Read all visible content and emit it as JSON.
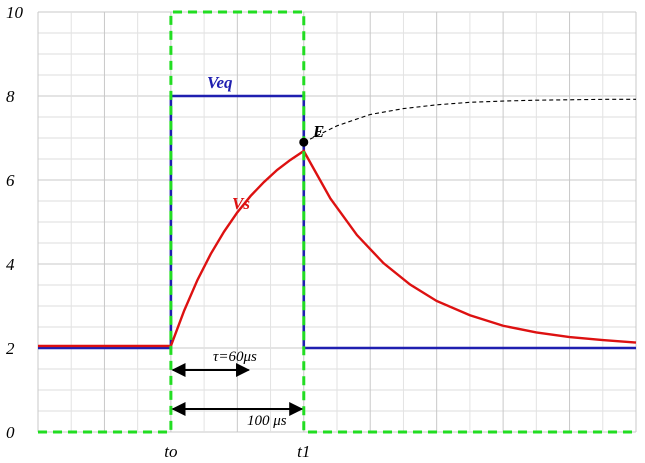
{
  "chart_data": {
    "type": "line",
    "title": "",
    "xlabel": "",
    "ylabel": "",
    "ylim": [
      0,
      10
    ],
    "xlim": [
      -100,
      350
    ],
    "grid": true,
    "y_ticks": [
      "0",
      "2",
      "4",
      "6",
      "8",
      "10"
    ],
    "x_ticks": [
      {
        "x": 0,
        "label": "to"
      },
      {
        "x": 100,
        "label": "t1"
      }
    ],
    "series": [
      {
        "name": "Veq",
        "color": "#1f1fb0",
        "style": "solid",
        "x": [
          -100,
          0,
          0,
          100,
          100,
          350
        ],
        "y": [
          2,
          2,
          8,
          8,
          2,
          2
        ]
      },
      {
        "name": "Vs",
        "color": "#dd1111",
        "style": "solid",
        "x": [
          -100,
          0,
          10,
          20,
          30,
          40,
          50,
          60,
          70,
          80,
          90,
          100,
          120,
          140,
          160,
          180,
          200,
          225,
          250,
          275,
          300,
          325,
          350
        ],
        "y": [
          2.05,
          2.05,
          2.89,
          3.62,
          4.24,
          4.77,
          5.23,
          5.62,
          5.95,
          6.24,
          6.48,
          6.69,
          5.56,
          4.69,
          4.02,
          3.51,
          3.12,
          2.78,
          2.53,
          2.37,
          2.26,
          2.19,
          2.13
        ]
      },
      {
        "name": "",
        "color": "#000000",
        "style": "dashed",
        "x": [
          100,
          125,
          150,
          175,
          200,
          225,
          250,
          275,
          300,
          325,
          350
        ],
        "y": [
          6.9,
          7.29,
          7.56,
          7.7,
          7.79,
          7.85,
          7.88,
          7.9,
          7.91,
          7.92,
          7.92
        ]
      },
      {
        "name": "",
        "color": "#22dd22",
        "style": "dashed",
        "x": [
          -100,
          0,
          0,
          100,
          100,
          350
        ],
        "y": [
          0,
          0,
          10,
          10,
          0,
          0
        ]
      }
    ],
    "points": [
      {
        "label": "E",
        "x": 100,
        "y": 6.9
      }
    ],
    "annotations": {
      "veq": "Veq",
      "vs": "Vs",
      "point_e": "E",
      "tau": "τ=60μs",
      "duration": "100 μs"
    },
    "arrows": [
      {
        "from": 0,
        "to": 60
      },
      {
        "from": 0,
        "to": 100
      }
    ]
  }
}
